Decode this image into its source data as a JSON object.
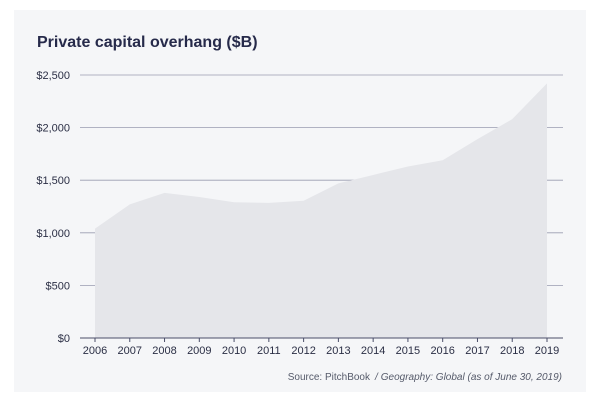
{
  "chart_data": {
    "type": "area",
    "title": "Private capital overhang ($B)",
    "x": [
      "2006",
      "2007",
      "2008",
      "2009",
      "2010",
      "2011",
      "2012",
      "2013",
      "2014",
      "2015",
      "2016",
      "2017",
      "2018",
      "2019"
    ],
    "y": [
      1040,
      1270,
      1380,
      1340,
      1290,
      1285,
      1305,
      1470,
      1550,
      1630,
      1690,
      1890,
      2080,
      2420
    ],
    "yticks": [
      "$0",
      "$500",
      "$1,000",
      "$1,500",
      "$2,000",
      "$2,500"
    ],
    "ytick_values": [
      0,
      500,
      1000,
      1500,
      2000,
      2500
    ],
    "ylim": [
      0,
      2500
    ],
    "grid": true,
    "area_color": "#e5e6ea",
    "grid_color": "#9a9cb0",
    "axis_color": "#4a4e69"
  },
  "footer": {
    "source_label": "Source: PitchBook",
    "separator": "/",
    "geography": "Geography: Global (as of June 30, 2019)"
  }
}
